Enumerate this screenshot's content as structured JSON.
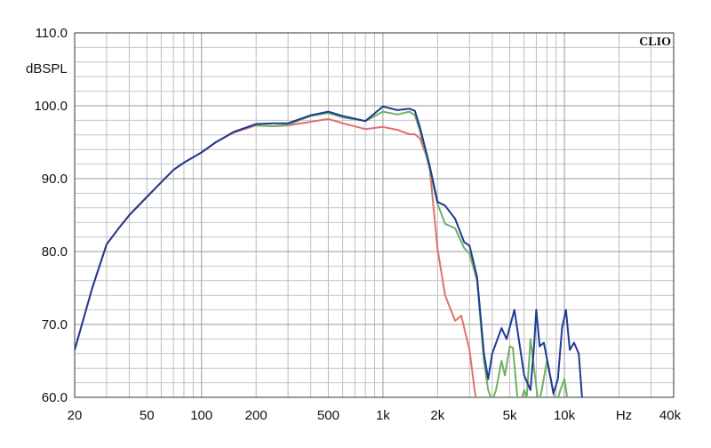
{
  "chart_data": {
    "type": "line",
    "brand": "CLIO",
    "ylabel": "dBSPL",
    "xunit": "Hz",
    "xscale": "log",
    "xlim": [
      20,
      40000
    ],
    "ylim": [
      60,
      110
    ],
    "grid": true,
    "x_ticks": [
      {
        "value": 20,
        "label": "20"
      },
      {
        "value": 50,
        "label": "50"
      },
      {
        "value": 100,
        "label": "100"
      },
      {
        "value": 200,
        "label": "200"
      },
      {
        "value": 500,
        "label": "500"
      },
      {
        "value": 1000,
        "label": "1k"
      },
      {
        "value": 2000,
        "label": "2k"
      },
      {
        "value": 5000,
        "label": "5k"
      },
      {
        "value": 10000,
        "label": "10k"
      },
      {
        "value": 40000,
        "label": "40k"
      }
    ],
    "y_ticks": [
      {
        "value": 60,
        "label": "60.0"
      },
      {
        "value": 70,
        "label": "70.0"
      },
      {
        "value": 80,
        "label": "80.0"
      },
      {
        "value": 90,
        "label": "90.0"
      },
      {
        "value": 100,
        "label": "100.0"
      },
      {
        "value": 110,
        "label": "110.0"
      }
    ],
    "series": [
      {
        "color": "#e07070",
        "points": [
          [
            20,
            66.5
          ],
          [
            25,
            75
          ],
          [
            30,
            81
          ],
          [
            35,
            83.2
          ],
          [
            40,
            85
          ],
          [
            50,
            87.5
          ],
          [
            60,
            89.5
          ],
          [
            70,
            91.2
          ],
          [
            80,
            92.2
          ],
          [
            100,
            93.6
          ],
          [
            120,
            95
          ],
          [
            150,
            96.3
          ],
          [
            200,
            97.3
          ],
          [
            250,
            97.2
          ],
          [
            300,
            97.3
          ],
          [
            400,
            97.8
          ],
          [
            500,
            98.2
          ],
          [
            600,
            97.6
          ],
          [
            800,
            96.8
          ],
          [
            1000,
            97.1
          ],
          [
            1200,
            96.7
          ],
          [
            1400,
            96.1
          ],
          [
            1500,
            96.1
          ],
          [
            1600,
            95.5
          ],
          [
            1800,
            92
          ],
          [
            2000,
            80.3
          ],
          [
            2200,
            74
          ],
          [
            2500,
            70.5
          ],
          [
            2700,
            71.2
          ],
          [
            3000,
            66.5
          ],
          [
            3200,
            61
          ],
          [
            3300,
            59
          ]
        ]
      },
      {
        "color": "#70b060",
        "points": [
          [
            200,
            97.3
          ],
          [
            250,
            97.2
          ],
          [
            300,
            97.4
          ],
          [
            400,
            98.6
          ],
          [
            500,
            99
          ],
          [
            600,
            98.4
          ],
          [
            800,
            97.9
          ],
          [
            1000,
            99.2
          ],
          [
            1200,
            98.8
          ],
          [
            1400,
            99.2
          ],
          [
            1500,
            98.7
          ],
          [
            1600,
            96.5
          ],
          [
            1800,
            91.5
          ],
          [
            2000,
            86.5
          ],
          [
            2200,
            83.8
          ],
          [
            2500,
            83.2
          ],
          [
            2800,
            80.5
          ],
          [
            3000,
            79.7
          ],
          [
            3300,
            76
          ],
          [
            3600,
            65
          ],
          [
            3800,
            61
          ],
          [
            4000,
            59.5
          ],
          [
            4200,
            61
          ],
          [
            4500,
            65
          ],
          [
            4700,
            63
          ],
          [
            5000,
            67
          ],
          [
            5200,
            66.8
          ],
          [
            5500,
            60
          ],
          [
            5700,
            59
          ],
          [
            6000,
            61
          ],
          [
            6200,
            60
          ],
          [
            6500,
            68
          ],
          [
            6800,
            64
          ],
          [
            7200,
            59
          ],
          [
            7500,
            61
          ],
          [
            8000,
            65
          ],
          [
            8500,
            62
          ],
          [
            9000,
            59
          ],
          [
            9500,
            61
          ],
          [
            10000,
            62.5
          ],
          [
            10500,
            59
          ]
        ]
      },
      {
        "color": "#1f3a93",
        "points": [
          [
            20,
            66.5
          ],
          [
            25,
            75
          ],
          [
            30,
            81
          ],
          [
            35,
            83.2
          ],
          [
            40,
            85
          ],
          [
            50,
            87.5
          ],
          [
            60,
            89.5
          ],
          [
            70,
            91.2
          ],
          [
            80,
            92.2
          ],
          [
            100,
            93.6
          ],
          [
            120,
            95
          ],
          [
            150,
            96.4
          ],
          [
            200,
            97.5
          ],
          [
            250,
            97.6
          ],
          [
            300,
            97.6
          ],
          [
            400,
            98.7
          ],
          [
            500,
            99.2
          ],
          [
            600,
            98.6
          ],
          [
            800,
            97.9
          ],
          [
            1000,
            99.9
          ],
          [
            1200,
            99.4
          ],
          [
            1400,
            99.6
          ],
          [
            1500,
            99.3
          ],
          [
            1600,
            97
          ],
          [
            1800,
            92
          ],
          [
            2000,
            86.8
          ],
          [
            2200,
            86.3
          ],
          [
            2500,
            84.5
          ],
          [
            2800,
            81.3
          ],
          [
            3000,
            80.8
          ],
          [
            3300,
            76.5
          ],
          [
            3600,
            66
          ],
          [
            3800,
            62.5
          ],
          [
            4000,
            66
          ],
          [
            4500,
            69.5
          ],
          [
            4800,
            68
          ],
          [
            5300,
            72
          ],
          [
            5600,
            68
          ],
          [
            6000,
            63
          ],
          [
            6500,
            61
          ],
          [
            6800,
            67
          ],
          [
            7000,
            72
          ],
          [
            7300,
            67
          ],
          [
            7700,
            67.5
          ],
          [
            8200,
            64
          ],
          [
            8700,
            60.5
          ],
          [
            9200,
            62.5
          ],
          [
            9700,
            69.5
          ],
          [
            10200,
            72
          ],
          [
            10700,
            66.5
          ],
          [
            11300,
            67.5
          ],
          [
            12000,
            66
          ],
          [
            12500,
            60
          ]
        ]
      }
    ]
  }
}
